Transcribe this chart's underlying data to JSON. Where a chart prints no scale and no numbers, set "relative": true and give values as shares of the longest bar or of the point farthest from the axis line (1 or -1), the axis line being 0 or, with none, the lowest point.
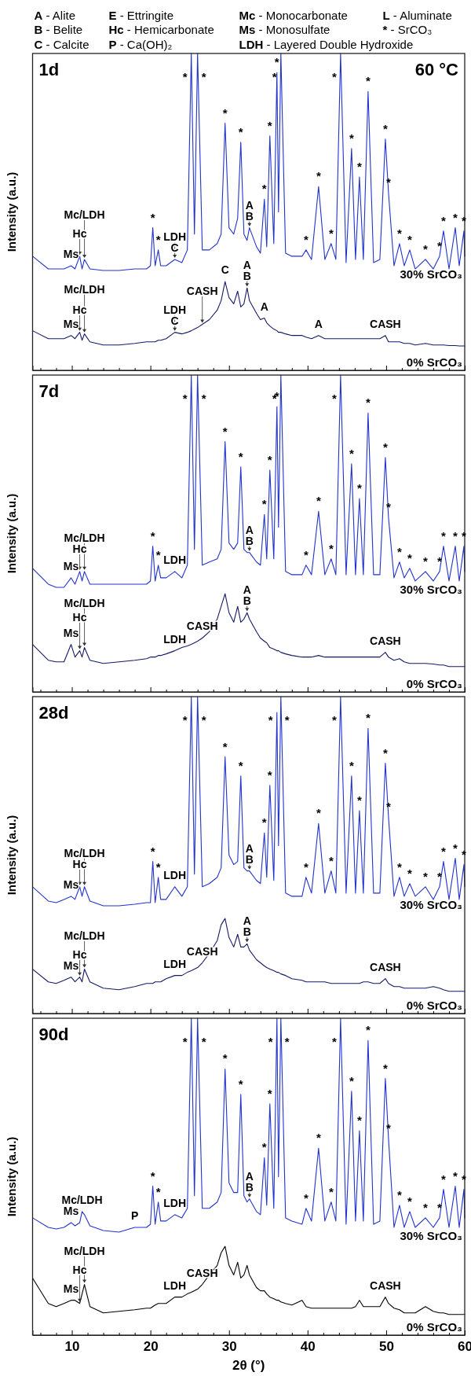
{
  "chart_data": [
    {
      "type": "line",
      "title": "1d",
      "subtitle": "60 °C",
      "ylabel": "Intensity (a.u.)",
      "relative": true,
      "tick_labels": false,
      "xlim": [
        5,
        60
      ],
      "xticks": [
        {
          "value": 6,
          "label": null
        },
        {
          "value": 8,
          "label": null
        },
        10,
        {
          "value": 12,
          "label": null
        },
        {
          "value": 14,
          "label": null
        },
        {
          "value": 16,
          "label": null
        },
        {
          "value": 18,
          "label": null
        },
        20,
        {
          "value": 22,
          "label": null
        },
        {
          "value": 24,
          "label": null
        },
        {
          "value": 26,
          "label": null
        },
        {
          "value": 28,
          "label": null
        },
        30,
        {
          "value": 32,
          "label": null
        },
        {
          "value": 34,
          "label": null
        },
        {
          "value": 36,
          "label": null
        },
        {
          "value": 38,
          "label": null
        },
        40,
        {
          "value": 42,
          "label": null
        },
        {
          "value": 44,
          "label": null
        },
        {
          "value": 46,
          "label": null
        },
        {
          "value": 48,
          "label": null
        },
        50,
        {
          "value": 52,
          "label": null
        },
        {
          "value": 54,
          "label": null
        },
        {
          "value": 56,
          "label": null
        },
        {
          "value": 58,
          "label": null
        },
        60
      ],
      "x": [
        5,
        7,
        8,
        9,
        9.9,
        10.4,
        11,
        11.3,
        11.6,
        12.3,
        14,
        16,
        18,
        19.5,
        20,
        20.3,
        20.6,
        21,
        21.3,
        22,
        23.1,
        24,
        24.7,
        25.2,
        25.6,
        26,
        26.6,
        27.5,
        28.5,
        29,
        29.5,
        30,
        30.6,
        31.1,
        31.5,
        31.9,
        32.3,
        32.6,
        33.5,
        34,
        34.5,
        34.8,
        35.2,
        35.7,
        36.1,
        36.3,
        36.6,
        37.2,
        38,
        39.3,
        39.8,
        40.5,
        41.4,
        42.2,
        43,
        43.6,
        44.2,
        44.9,
        45.6,
        46.1,
        46.6,
        47.1,
        47.7,
        48.4,
        49.2,
        49.9,
        50.3,
        51,
        51.7,
        52.3,
        53,
        53.7,
        55,
        56,
        56.8,
        57.3,
        58,
        58.8,
        59.3,
        59.9,
        60
      ],
      "series": [
        {
          "name": "30% SrCO₃",
          "color": "#2233cc",
          "values": [
            0.36,
            0.32,
            0.32,
            0.32,
            0.33,
            0.32,
            0.36,
            0.32,
            0.35,
            0.32,
            0.315,
            0.315,
            0.32,
            0.32,
            0.33,
            0.45,
            0.33,
            0.38,
            0.33,
            0.33,
            0.35,
            0.34,
            0.38,
            1,
            0.43,
            1,
            0.38,
            0.38,
            0.4,
            0.43,
            0.78,
            0.45,
            0.43,
            0.48,
            0.72,
            0.43,
            0.41,
            0.45,
            0.39,
            0.37,
            0.54,
            0.39,
            0.74,
            0.4,
            0.94,
            0.5,
            1,
            0.37,
            0.36,
            0.36,
            0.38,
            0.35,
            0.58,
            0.35,
            0.4,
            0.35,
            1,
            0.34,
            0.7,
            0.35,
            0.61,
            0.35,
            0.88,
            0.34,
            0.35,
            0.73,
            0.56,
            0.33,
            0.4,
            0.33,
            0.38,
            0.32,
            0.35,
            0.32,
            0.36,
            0.44,
            0.32,
            0.45,
            0.33,
            0.44,
            0.36
          ]
        },
        {
          "name": "0% SrCO₃",
          "color": "#151a66",
          "values": [
            0.125,
            0.1,
            0.1,
            0.1,
            0.11,
            0.1,
            0.12,
            0.095,
            0.115,
            0.09,
            0.08,
            0.08,
            0.085,
            0.09,
            0.09,
            0.09,
            0.09,
            0.095,
            0.095,
            0.1,
            0.12,
            0.115,
            0.12,
            0.125,
            0.13,
            0.135,
            0.145,
            0.16,
            0.19,
            0.22,
            0.28,
            0.23,
            0.21,
            0.25,
            0.2,
            0.21,
            0.26,
            0.22,
            0.18,
            0.16,
            0.165,
            0.15,
            0.14,
            0.13,
            0.125,
            0.12,
            0.12,
            0.115,
            0.11,
            0.11,
            0.105,
            0.1,
            0.11,
            0.1,
            0.1,
            0.1,
            0.1,
            0.1,
            0.1,
            0.1,
            0.1,
            0.1,
            0.1,
            0.1,
            0.1,
            0.11,
            0.09,
            0.09,
            0.09,
            0.085,
            0.085,
            0.08,
            0.085,
            0.08,
            0.08,
            0.08,
            0.078,
            0.078,
            0.077,
            0.077,
            0.077
          ]
        }
      ],
      "annotations": [
        "A - Alite",
        "B - Belite",
        "C - Calcite",
        "E - Ettringite",
        "Hc - Hemicarbonate",
        "P - Ca(OH)₂",
        "Mc - Monocarbonate",
        "Ms - Monosulfate",
        "LDH - Layered Double Hydroxide",
        "L - Aluminate",
        "* - SrCO₃",
        {
          "text": "*",
          "x": 20.3,
          "y": 0.45
        },
        {
          "text": "*",
          "x": 21,
          "y": 0.38
        },
        {
          "text": "*",
          "x": 25.2,
          "y": 1
        },
        {
          "text": "*",
          "x": 26,
          "y": 1
        },
        {
          "text": "*",
          "x": 29.5,
          "y": 0.78
        },
        {
          "text": "*",
          "x": 31.5,
          "y": 0.72
        },
        {
          "text": "*",
          "x": 34.5,
          "y": 0.54
        },
        {
          "text": "*",
          "x": 35.2,
          "y": 0.74
        },
        {
          "text": "*",
          "x": 36.1,
          "y": 0.94
        },
        {
          "text": "*",
          "x": 36.6,
          "y": 1
        },
        {
          "text": "*",
          "x": 39.8,
          "y": 0.38
        },
        {
          "text": "*",
          "x": 41.4,
          "y": 0.58
        },
        {
          "text": "*",
          "x": 43,
          "y": 0.4
        },
        {
          "text": "*",
          "x": 44.2,
          "y": 1
        },
        {
          "text": "*",
          "x": 45.6,
          "y": 0.7
        },
        {
          "text": "*",
          "x": 46.6,
          "y": 0.61
        },
        {
          "text": "*",
          "x": 47.7,
          "y": 0.88
        },
        {
          "text": "*",
          "x": 49.9,
          "y": 0.73
        },
        {
          "text": "*",
          "x": 50.3,
          "y": 0.56
        },
        {
          "text": "*",
          "x": 51.7,
          "y": 0.4
        },
        {
          "text": "*",
          "x": 53,
          "y": 0.38
        },
        {
          "text": "*",
          "x": 55,
          "y": 0.35
        },
        {
          "text": "*",
          "x": 56.8,
          "y": 0.36
        },
        {
          "text": "*",
          "x": 57.3,
          "y": 0.44
        },
        {
          "text": "*",
          "x": 58.8,
          "y": 0.45
        },
        {
          "text": "*",
          "x": 59.9,
          "y": 0.44
        },
        {
          "text": "Ms",
          "x": 9.9,
          "y": 0.33
        },
        {
          "text": "Hc",
          "x": 11,
          "y": 0.36
        },
        {
          "text": "Mc/LDH",
          "x": 11.6,
          "y": 0.35
        },
        {
          "text": "C",
          "x": 23.1,
          "y": 0.35
        },
        {
          "text": "LDH",
          "x": 23.1,
          "y": 0.35
        },
        {
          "text": "B",
          "x": 32.6,
          "y": 0.45
        },
        {
          "text": "A",
          "x": 32.6,
          "y": 0.45
        },
        {
          "text": "Ms",
          "x": 9.9,
          "y": 0.11
        },
        {
          "text": "Hc",
          "x": 11,
          "y": 0.12
        },
        {
          "text": "Mc/LDH",
          "x": 11.6,
          "y": 0.115
        },
        {
          "text": "C",
          "x": 23.1,
          "y": 0.12
        },
        {
          "text": "LDH",
          "x": 23.1,
          "y": 0.12
        },
        {
          "text": "CASH",
          "x": 26.6,
          "y": 0.145
        },
        {
          "text": "C",
          "x": 29.5,
          "y": 0.28
        },
        {
          "text": "B",
          "x": 32.3,
          "y": 0.26
        },
        {
          "text": "A",
          "x": 32.3,
          "y": 0.26
        },
        {
          "text": "A",
          "x": 34.5,
          "y": 0.165
        },
        {
          "text": "A",
          "x": 41.4,
          "y": 0.11
        },
        {
          "text": "CASH",
          "x": 49.9,
          "y": 0.11
        }
      ]
    },
    {
      "type": "line",
      "title": "7d",
      "ylabel": "Intensity (a.u.)",
      "relative": true,
      "tick_labels": false,
      "xlim": [
        5,
        60
      ],
      "xticks": [
        {
          "value": 6,
          "label": null
        },
        {
          "value": 8,
          "label": null
        },
        10,
        {
          "value": 12,
          "label": null
        },
        {
          "value": 14,
          "label": null
        },
        {
          "value": 16,
          "label": null
        },
        {
          "value": 18,
          "label": null
        },
        20,
        {
          "value": 22,
          "label": null
        },
        {
          "value": 24,
          "label": null
        },
        {
          "value": 26,
          "label": null
        },
        {
          "value": 28,
          "label": null
        },
        30,
        {
          "value": 32,
          "label": null
        },
        {
          "value": 34,
          "label": null
        },
        {
          "value": 36,
          "label": null
        },
        {
          "value": 38,
          "label": null
        },
        40,
        {
          "value": 42,
          "label": null
        },
        {
          "value": 44,
          "label": null
        },
        {
          "value": 46,
          "label": null
        },
        {
          "value": 48,
          "label": null
        },
        50,
        {
          "value": 52,
          "label": null
        },
        {
          "value": 54,
          "label": null
        },
        {
          "value": 56,
          "label": null
        },
        {
          "value": 58,
          "label": null
        },
        60
      ],
      "x": [
        5,
        7,
        8,
        9,
        9.9,
        10.4,
        11,
        11.3,
        11.6,
        12.3,
        14,
        16,
        18,
        19.5,
        20,
        20.3,
        20.6,
        21,
        21.3,
        22,
        23.1,
        24,
        24.7,
        25.2,
        25.6,
        26,
        26.6,
        27.5,
        28.5,
        29,
        29.5,
        30,
        30.6,
        31.1,
        31.5,
        31.9,
        32.3,
        32.6,
        33.5,
        34,
        34.5,
        34.8,
        35.2,
        35.7,
        36.1,
        36.3,
        36.6,
        37.2,
        38,
        39.3,
        39.8,
        40.5,
        41.4,
        42.2,
        43,
        43.6,
        44.2,
        44.9,
        45.6,
        46.1,
        46.6,
        47.1,
        47.7,
        48.4,
        49.2,
        49.9,
        50.3,
        51,
        51.7,
        52.3,
        53,
        53.7,
        55,
        56,
        56.8,
        57.3,
        58,
        58.8,
        59.3,
        59.9,
        60
      ],
      "series": [
        {
          "name": "30% SrCO₃",
          "color": "#2233cc",
          "values": [
            0.39,
            0.34,
            0.33,
            0.33,
            0.36,
            0.34,
            0.38,
            0.35,
            0.38,
            0.34,
            0.34,
            0.34,
            0.34,
            0.34,
            0.35,
            0.46,
            0.35,
            0.4,
            0.36,
            0.36,
            0.38,
            0.36,
            0.4,
            1,
            0.45,
            1,
            0.4,
            0.41,
            0.42,
            0.45,
            0.79,
            0.47,
            0.45,
            0.47,
            0.71,
            0.45,
            0.44,
            0.44,
            0.41,
            0.4,
            0.56,
            0.42,
            0.7,
            0.42,
            0.9,
            0.52,
            1,
            0.38,
            0.37,
            0.37,
            0.4,
            0.37,
            0.57,
            0.37,
            0.42,
            0.37,
            1,
            0.37,
            0.72,
            0.37,
            0.61,
            0.37,
            0.88,
            0.37,
            0.37,
            0.74,
            0.55,
            0.36,
            0.41,
            0.36,
            0.39,
            0.35,
            0.38,
            0.35,
            0.38,
            0.46,
            0.35,
            0.46,
            0.35,
            0.46,
            0.38
          ]
        },
        {
          "name": "0% SrCO₃",
          "color": "#151a66",
          "values": [
            0.15,
            0.1,
            0.095,
            0.095,
            0.15,
            0.11,
            0.13,
            0.11,
            0.14,
            0.1,
            0.09,
            0.095,
            0.1,
            0.105,
            0.11,
            0.11,
            0.11,
            0.115,
            0.115,
            0.12,
            0.13,
            0.14,
            0.145,
            0.15,
            0.155,
            0.16,
            0.17,
            0.19,
            0.23,
            0.27,
            0.31,
            0.25,
            0.22,
            0.27,
            0.22,
            0.23,
            0.25,
            0.23,
            0.19,
            0.17,
            0.16,
            0.155,
            0.14,
            0.135,
            0.13,
            0.13,
            0.125,
            0.12,
            0.115,
            0.11,
            0.11,
            0.11,
            0.115,
            0.11,
            0.11,
            0.11,
            0.11,
            0.11,
            0.11,
            0.11,
            0.11,
            0.11,
            0.11,
            0.11,
            0.11,
            0.125,
            0.11,
            0.1,
            0.105,
            0.095,
            0.09,
            0.09,
            0.09,
            0.088,
            0.085,
            0.085,
            0.08,
            0.08,
            0.08,
            0.08,
            0.08
          ]
        }
      ],
      "annotations": [
        {
          "text": "*",
          "x": 20.3,
          "y": 0.46
        },
        {
          "text": "*",
          "x": 21,
          "y": 0.4
        },
        {
          "text": "*",
          "x": 25.2,
          "y": 1
        },
        {
          "text": "*",
          "x": 26,
          "y": 1
        },
        {
          "text": "*",
          "x": 29.5,
          "y": 0.79
        },
        {
          "text": "*",
          "x": 31.5,
          "y": 0.71
        },
        {
          "text": "*",
          "x": 34.5,
          "y": 0.56
        },
        {
          "text": "*",
          "x": 35.2,
          "y": 0.7
        },
        {
          "text": "*",
          "x": 36.1,
          "y": 0.9
        },
        {
          "text": "*",
          "x": 36.6,
          "y": 1
        },
        {
          "text": "*",
          "x": 39.8,
          "y": 0.4
        },
        {
          "text": "*",
          "x": 41.4,
          "y": 0.57
        },
        {
          "text": "*",
          "x": 43,
          "y": 0.42
        },
        {
          "text": "*",
          "x": 44.2,
          "y": 1
        },
        {
          "text": "*",
          "x": 45.6,
          "y": 0.72
        },
        {
          "text": "*",
          "x": 46.6,
          "y": 0.61
        },
        {
          "text": "*",
          "x": 47.7,
          "y": 0.88
        },
        {
          "text": "*",
          "x": 49.9,
          "y": 0.74
        },
        {
          "text": "*",
          "x": 50.3,
          "y": 0.55
        },
        {
          "text": "*",
          "x": 51.7,
          "y": 0.41
        },
        {
          "text": "*",
          "x": 53,
          "y": 0.39
        },
        {
          "text": "*",
          "x": 55,
          "y": 0.38
        },
        {
          "text": "*",
          "x": 56.8,
          "y": 0.38
        },
        {
          "text": "*",
          "x": 57.3,
          "y": 0.46
        },
        {
          "text": "*",
          "x": 58.8,
          "y": 0.46
        },
        {
          "text": "*",
          "x": 59.9,
          "y": 0.46
        },
        {
          "text": "Ms",
          "x": 9.9,
          "y": 0.36
        },
        {
          "text": "Hc",
          "x": 11,
          "y": 0.38
        },
        {
          "text": "Mc/LDH",
          "x": 11.6,
          "y": 0.38
        },
        {
          "text": "LDH",
          "x": 23.1,
          "y": 0.38
        },
        {
          "text": "B",
          "x": 32.6,
          "y": 0.44
        },
        {
          "text": "A",
          "x": 32.6,
          "y": 0.44
        },
        {
          "text": "Ms",
          "x": 9.9,
          "y": 0.15
        },
        {
          "text": "Hc",
          "x": 11,
          "y": 0.13
        },
        {
          "text": "Mc/LDH",
          "x": 11.6,
          "y": 0.14
        },
        {
          "text": "LDH",
          "x": 23.1,
          "y": 0.13
        },
        {
          "text": "CASH",
          "x": 26.6,
          "y": 0.17
        },
        {
          "text": "B",
          "x": 32.3,
          "y": 0.25
        },
        {
          "text": "A",
          "x": 32.3,
          "y": 0.25
        },
        {
          "text": "CASH",
          "x": 49.9,
          "y": 0.125
        }
      ]
    },
    {
      "type": "line",
      "title": "28d",
      "ylabel": "Intensity (a.u.)",
      "relative": true,
      "tick_labels": false,
      "xlim": [
        5,
        60
      ],
      "xticks": [
        {
          "value": 6,
          "label": null
        },
        {
          "value": 8,
          "label": null
        },
        10,
        {
          "value": 12,
          "label": null
        },
        {
          "value": 14,
          "label": null
        },
        {
          "value": 16,
          "label": null
        },
        {
          "value": 18,
          "label": null
        },
        20,
        {
          "value": 22,
          "label": null
        },
        {
          "value": 24,
          "label": null
        },
        {
          "value": 26,
          "label": null
        },
        {
          "value": 28,
          "label": null
        },
        30,
        {
          "value": 32,
          "label": null
        },
        {
          "value": 34,
          "label": null
        },
        {
          "value": 36,
          "label": null
        },
        {
          "value": 38,
          "label": null
        },
        40,
        {
          "value": 42,
          "label": null
        },
        {
          "value": 44,
          "label": null
        },
        {
          "value": 46,
          "label": null
        },
        {
          "value": 48,
          "label": null
        },
        50,
        {
          "value": 52,
          "label": null
        },
        {
          "value": 54,
          "label": null
        },
        {
          "value": 56,
          "label": null
        },
        {
          "value": 58,
          "label": null
        },
        60
      ],
      "x": [
        5,
        7,
        8,
        9,
        9.9,
        10.4,
        11,
        11.3,
        11.6,
        12.3,
        14,
        16,
        18,
        19.5,
        20,
        20.3,
        20.6,
        21,
        21.3,
        22,
        23.1,
        24,
        24.7,
        25.2,
        25.6,
        26,
        26.6,
        27.5,
        28.5,
        29,
        29.5,
        30,
        30.6,
        31.1,
        31.5,
        31.9,
        32.3,
        32.6,
        33.5,
        34,
        34.5,
        34.8,
        35.2,
        35.7,
        36.1,
        36.3,
        36.6,
        37.2,
        38,
        39.3,
        39.8,
        40.5,
        41.4,
        42.2,
        43,
        43.6,
        44.2,
        44.9,
        45.6,
        46.1,
        46.6,
        47.1,
        47.7,
        48.4,
        49.2,
        49.9,
        50.3,
        51,
        51.7,
        52.3,
        53,
        53.7,
        55,
        56,
        56.8,
        57.3,
        58,
        58.8,
        59.3,
        59.9,
        60
      ],
      "series": [
        {
          "name": "30% SrCO₃",
          "color": "#2233cc",
          "values": [
            0.4,
            0.355,
            0.35,
            0.36,
            0.37,
            0.36,
            0.4,
            0.37,
            0.4,
            0.355,
            0.34,
            0.34,
            0.345,
            0.35,
            0.35,
            0.48,
            0.35,
            0.43,
            0.36,
            0.36,
            0.4,
            0.37,
            0.4,
            1,
            0.44,
            1,
            0.4,
            0.41,
            0.43,
            0.46,
            0.81,
            0.5,
            0.47,
            0.48,
            0.75,
            0.46,
            0.45,
            0.45,
            0.42,
            0.41,
            0.57,
            0.43,
            0.72,
            0.42,
            0.95,
            0.53,
            1,
            0.38,
            0.37,
            0.37,
            0.43,
            0.38,
            0.6,
            0.38,
            0.45,
            0.38,
            1,
            0.38,
            0.75,
            0.38,
            0.64,
            0.38,
            0.9,
            0.38,
            0.38,
            0.79,
            0.62,
            0.37,
            0.43,
            0.37,
            0.41,
            0.37,
            0.4,
            0.36,
            0.4,
            0.48,
            0.36,
            0.49,
            0.36,
            0.47,
            0.4
          ]
        },
        {
          "name": "0% SrCO₃",
          "color": "#151a66",
          "values": [
            0.14,
            0.1,
            0.095,
            0.105,
            0.115,
            0.1,
            0.115,
            0.1,
            0.14,
            0.1,
            0.08,
            0.075,
            0.085,
            0.095,
            0.095,
            0.095,
            0.1,
            0.1,
            0.1,
            0.11,
            0.12,
            0.12,
            0.13,
            0.135,
            0.14,
            0.145,
            0.16,
            0.19,
            0.23,
            0.28,
            0.3,
            0.24,
            0.21,
            0.25,
            0.21,
            0.21,
            0.22,
            0.2,
            0.17,
            0.16,
            0.15,
            0.145,
            0.14,
            0.135,
            0.13,
            0.13,
            0.125,
            0.12,
            0.11,
            0.105,
            0.1,
            0.1,
            0.1,
            0.1,
            0.095,
            0.095,
            0.095,
            0.095,
            0.095,
            0.095,
            0.095,
            0.1,
            0.1,
            0.095,
            0.095,
            0.11,
            0.095,
            0.085,
            0.085,
            0.08,
            0.08,
            0.08,
            0.08,
            0.085,
            0.08,
            0.075,
            0.07,
            0.07,
            0.07,
            0.07,
            0.07
          ]
        }
      ],
      "annotations": [
        {
          "text": "*",
          "x": 20.3,
          "y": 0.48
        },
        {
          "text": "*",
          "x": 21,
          "y": 0.43
        },
        {
          "text": "*",
          "x": 25.2,
          "y": 1
        },
        {
          "text": "*",
          "x": 26,
          "y": 1
        },
        {
          "text": "*",
          "x": 29.5,
          "y": 0.81
        },
        {
          "text": "*",
          "x": 31.5,
          "y": 0.75
        },
        {
          "text": "*",
          "x": 34.5,
          "y": 0.57
        },
        {
          "text": "*",
          "x": 35.2,
          "y": 0.72
        },
        {
          "text": "*",
          "x": 36.1,
          "y": 0.95
        },
        {
          "text": "*",
          "x": 36.6,
          "y": 1
        },
        {
          "text": "*",
          "x": 39.8,
          "y": 0.43
        },
        {
          "text": "*",
          "x": 41.4,
          "y": 0.6
        },
        {
          "text": "*",
          "x": 43,
          "y": 0.45
        },
        {
          "text": "*",
          "x": 44.2,
          "y": 1
        },
        {
          "text": "*",
          "x": 45.6,
          "y": 0.75
        },
        {
          "text": "*",
          "x": 46.6,
          "y": 0.64
        },
        {
          "text": "*",
          "x": 47.7,
          "y": 0.9
        },
        {
          "text": "*",
          "x": 49.9,
          "y": 0.79
        },
        {
          "text": "*",
          "x": 50.3,
          "y": 0.62
        },
        {
          "text": "*",
          "x": 51.7,
          "y": 0.43
        },
        {
          "text": "*",
          "x": 53,
          "y": 0.41
        },
        {
          "text": "*",
          "x": 55,
          "y": 0.4
        },
        {
          "text": "*",
          "x": 56.8,
          "y": 0.4
        },
        {
          "text": "*",
          "x": 57.3,
          "y": 0.48
        },
        {
          "text": "*",
          "x": 58.8,
          "y": 0.49
        },
        {
          "text": "*",
          "x": 59.9,
          "y": 0.47
        },
        {
          "text": "Ms",
          "x": 9.9,
          "y": 0.37
        },
        {
          "text": "Hc",
          "x": 11,
          "y": 0.4
        },
        {
          "text": "Mc/LDH",
          "x": 11.6,
          "y": 0.4
        },
        {
          "text": "LDH",
          "x": 23.1,
          "y": 0.4
        },
        {
          "text": "B",
          "x": 32.6,
          "y": 0.45
        },
        {
          "text": "A",
          "x": 32.6,
          "y": 0.45
        },
        {
          "text": "Ms",
          "x": 9.9,
          "y": 0.115
        },
        {
          "text": "Hc",
          "x": 11,
          "y": 0.115
        },
        {
          "text": "Mc/LDH",
          "x": 11.6,
          "y": 0.14
        },
        {
          "text": "LDH",
          "x": 23.1,
          "y": 0.12
        },
        {
          "text": "CASH",
          "x": 26.6,
          "y": 0.16
        },
        {
          "text": "B",
          "x": 32.3,
          "y": 0.22
        },
        {
          "text": "A",
          "x": 32.3,
          "y": 0.22
        },
        {
          "text": "CASH",
          "x": 49.9,
          "y": 0.11
        }
      ]
    },
    {
      "type": "line",
      "title": "90d",
      "xlabel": "2θ (°)",
      "ylabel": "Intensity (a.u.)",
      "relative": true,
      "tick_labels": "x",
      "xlim": [
        5,
        60
      ],
      "xticks": [
        {
          "value": 6,
          "label": null
        },
        {
          "value": 8,
          "label": null
        },
        10,
        {
          "value": 12,
          "label": null
        },
        {
          "value": 14,
          "label": null
        },
        {
          "value": 16,
          "label": null
        },
        {
          "value": 18,
          "label": null
        },
        20,
        {
          "value": 22,
          "label": null
        },
        {
          "value": 24,
          "label": null
        },
        {
          "value": 26,
          "label": null
        },
        {
          "value": 28,
          "label": null
        },
        30,
        {
          "value": 32,
          "label": null
        },
        {
          "value": 34,
          "label": null
        },
        {
          "value": 36,
          "label": null
        },
        {
          "value": 38,
          "label": null
        },
        40,
        {
          "value": 42,
          "label": null
        },
        {
          "value": 44,
          "label": null
        },
        {
          "value": 46,
          "label": null
        },
        {
          "value": 48,
          "label": null
        },
        50,
        {
          "value": 52,
          "label": null
        },
        {
          "value": 54,
          "label": null
        },
        {
          "value": 56,
          "label": null
        },
        {
          "value": 58,
          "label": null
        },
        60
      ],
      "x": [
        5,
        7,
        8,
        9,
        9.9,
        10.4,
        11,
        11.3,
        11.6,
        12.3,
        14,
        16,
        18,
        19.5,
        20,
        20.3,
        20.6,
        21,
        21.3,
        22,
        23.1,
        24,
        24.7,
        25.2,
        25.6,
        26,
        26.6,
        27.5,
        28.5,
        29,
        29.5,
        30,
        30.6,
        31.1,
        31.5,
        31.9,
        32.3,
        32.6,
        33.5,
        34,
        34.5,
        34.8,
        35.2,
        35.7,
        36.1,
        36.3,
        36.6,
        37.2,
        38,
        39.3,
        39.8,
        40.5,
        41.4,
        42.2,
        43,
        43.6,
        44.2,
        44.9,
        45.6,
        46.1,
        46.6,
        47.1,
        47.7,
        48.4,
        49.2,
        49.9,
        50.3,
        51,
        51.7,
        52.3,
        53,
        53.7,
        55,
        56,
        56.8,
        57.3,
        58,
        58.8,
        59.3,
        59.9,
        60
      ],
      "series": [
        {
          "name": "30% SrCO₃",
          "color": "#2233cc",
          "values": [
            0.37,
            0.34,
            0.335,
            0.34,
            0.355,
            0.345,
            0.355,
            0.39,
            0.38,
            0.345,
            0.33,
            0.325,
            0.34,
            0.34,
            0.35,
            0.47,
            0.35,
            0.42,
            0.36,
            0.36,
            0.38,
            0.37,
            0.4,
            1,
            0.44,
            1,
            0.4,
            0.4,
            0.42,
            0.45,
            0.84,
            0.48,
            0.45,
            0.45,
            0.76,
            0.44,
            0.42,
            0.43,
            0.39,
            0.38,
            0.56,
            0.41,
            0.73,
            0.4,
            1,
            0.5,
            1,
            0.37,
            0.36,
            0.35,
            0.4,
            0.36,
            0.59,
            0.36,
            0.42,
            0.36,
            1,
            0.35,
            0.77,
            0.36,
            0.645,
            0.36,
            0.93,
            0.35,
            0.36,
            0.81,
            0.62,
            0.34,
            0.41,
            0.34,
            0.39,
            0.34,
            0.37,
            0.34,
            0.37,
            0.46,
            0.34,
            0.47,
            0.34,
            0.46,
            0.37
          ]
        },
        {
          "name": "0% SrCO₃",
          "color": "#000000",
          "values": [
            0.18,
            0.1,
            0.09,
            0.1,
            0.11,
            0.11,
            0.1,
            0.13,
            0.16,
            0.09,
            0.07,
            0.075,
            0.08,
            0.085,
            0.085,
            0.09,
            0.095,
            0.1,
            0.1,
            0.1,
            0.12,
            0.12,
            0.13,
            0.135,
            0.14,
            0.145,
            0.16,
            0.19,
            0.22,
            0.26,
            0.28,
            0.22,
            0.19,
            0.23,
            0.18,
            0.19,
            0.22,
            0.19,
            0.15,
            0.14,
            0.14,
            0.13,
            0.12,
            0.115,
            0.11,
            0.11,
            0.105,
            0.1,
            0.095,
            0.11,
            0.09,
            0.085,
            0.085,
            0.085,
            0.085,
            0.085,
            0.085,
            0.085,
            0.085,
            0.09,
            0.11,
            0.09,
            0.09,
            0.09,
            0.09,
            0.12,
            0.1,
            0.085,
            0.08,
            0.07,
            0.07,
            0.07,
            0.09,
            0.075,
            0.07,
            0.07,
            0.065,
            0.065,
            0.065,
            0.065,
            0.065
          ]
        }
      ],
      "annotations": [
        {
          "text": "*",
          "x": 20.3,
          "y": 0.47
        },
        {
          "text": "*",
          "x": 21,
          "y": 0.42
        },
        {
          "text": "*",
          "x": 25.2,
          "y": 1
        },
        {
          "text": "*",
          "x": 26,
          "y": 1
        },
        {
          "text": "*",
          "x": 29.5,
          "y": 0.84
        },
        {
          "text": "*",
          "x": 31.5,
          "y": 0.76
        },
        {
          "text": "*",
          "x": 34.5,
          "y": 0.56
        },
        {
          "text": "*",
          "x": 35.2,
          "y": 0.73
        },
        {
          "text": "*",
          "x": 36.1,
          "y": 1
        },
        {
          "text": "*",
          "x": 36.6,
          "y": 1
        },
        {
          "text": "*",
          "x": 39.8,
          "y": 0.4
        },
        {
          "text": "*",
          "x": 41.4,
          "y": 0.59
        },
        {
          "text": "*",
          "x": 43,
          "y": 0.42
        },
        {
          "text": "*",
          "x": 44.2,
          "y": 1
        },
        {
          "text": "*",
          "x": 45.6,
          "y": 0.77
        },
        {
          "text": "*",
          "x": 46.6,
          "y": 0.645
        },
        {
          "text": "*",
          "x": 47.7,
          "y": 0.93
        },
        {
          "text": "*",
          "x": 49.9,
          "y": 0.81
        },
        {
          "text": "*",
          "x": 50.3,
          "y": 0.62
        },
        {
          "text": "*",
          "x": 51.7,
          "y": 0.41
        },
        {
          "text": "*",
          "x": 53,
          "y": 0.39
        },
        {
          "text": "*",
          "x": 55,
          "y": 0.37
        },
        {
          "text": "*",
          "x": 56.8,
          "y": 0.37
        },
        {
          "text": "*",
          "x": 57.3,
          "y": 0.46
        },
        {
          "text": "*",
          "x": 58.8,
          "y": 0.47
        },
        {
          "text": "*",
          "x": 59.9,
          "y": 0.46
        },
        {
          "text": "Ms",
          "x": 9.9,
          "y": 0.355
        },
        {
          "text": "Mc/LDH",
          "x": 11.3,
          "y": 0.39
        },
        {
          "text": "P",
          "x": 18,
          "y": 0.34
        },
        {
          "text": "LDH",
          "x": 23.1,
          "y": 0.38
        },
        {
          "text": "B",
          "x": 32.6,
          "y": 0.43
        },
        {
          "text": "A",
          "x": 32.6,
          "y": 0.43
        },
        {
          "text": "Ms",
          "x": 9.9,
          "y": 0.11
        },
        {
          "text": "Hc",
          "x": 11,
          "y": 0.1
        },
        {
          "text": "Mc/LDH",
          "x": 11.6,
          "y": 0.16
        },
        {
          "text": "LDH",
          "x": 23.1,
          "y": 0.12
        },
        {
          "text": "CASH",
          "x": 26.6,
          "y": 0.16
        },
        {
          "text": "CASH",
          "x": 49.9,
          "y": 0.12
        }
      ]
    }
  ]
}
